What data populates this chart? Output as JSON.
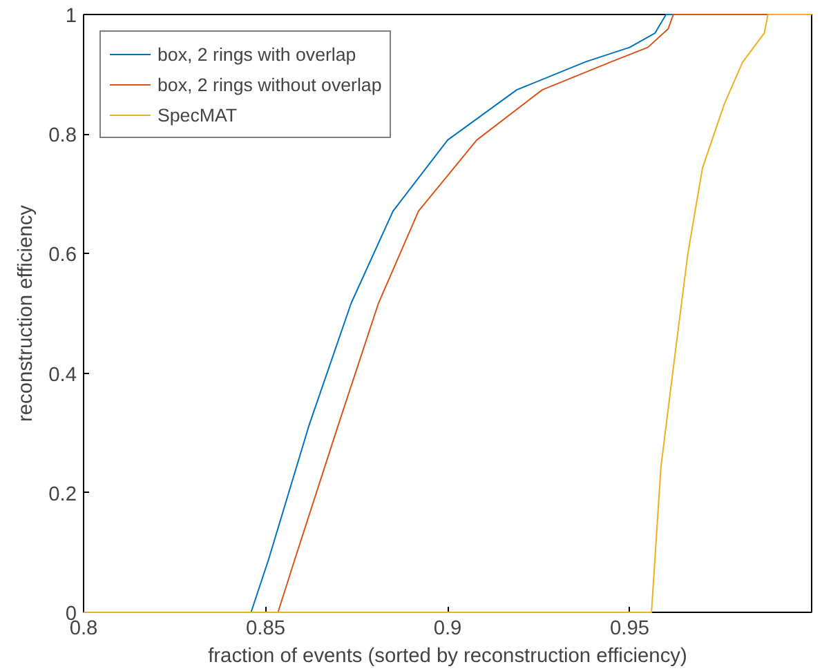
{
  "chart_data": {
    "type": "line",
    "xlabel": "fraction of events (sorted by reconstruction efficiency)",
    "ylabel": "reconstruction efficiency",
    "xlim": [
      0.8,
      1
    ],
    "ylim": [
      0,
      1
    ],
    "xticks": [
      0.8,
      0.85,
      0.9,
      0.95
    ],
    "yticks": [
      0,
      0.2,
      0.4,
      0.6,
      0.8,
      1
    ],
    "grid": false,
    "legend": "top left",
    "marker": "none",
    "line_style": "solid",
    "series": [
      {
        "name": "box, 2 rings with overlap",
        "color": "#0072bd",
        "x": [
          0.8,
          0.846,
          0.8508,
          0.862,
          0.8735,
          0.885,
          0.9,
          0.919,
          0.938,
          0.95,
          0.957,
          0.96,
          1.0
        ],
        "values": [
          0,
          0,
          0.088,
          0.314,
          0.517,
          0.671,
          0.79,
          0.874,
          0.921,
          0.945,
          0.969,
          1,
          1
        ]
      },
      {
        "name": "box, 2 rings without overlap",
        "color": "#d95319",
        "x": [
          0.8,
          0.8534,
          0.858,
          0.87,
          0.881,
          0.892,
          0.908,
          0.926,
          0.945,
          0.955,
          0.9606,
          0.962,
          1.0
        ],
        "values": [
          0,
          0,
          0.088,
          0.314,
          0.517,
          0.671,
          0.79,
          0.874,
          0.921,
          0.945,
          0.976,
          1,
          1
        ]
      },
      {
        "name": "SpecMAT",
        "color": "#edb120",
        "x": [
          0.8,
          0.956,
          0.9586,
          0.9625,
          0.966,
          0.97,
          0.976,
          0.981,
          0.987,
          0.988,
          1.0
        ],
        "values": [
          0,
          0,
          0.243,
          0.433,
          0.6,
          0.743,
          0.85,
          0.92,
          0.969,
          1,
          1
        ]
      }
    ]
  }
}
